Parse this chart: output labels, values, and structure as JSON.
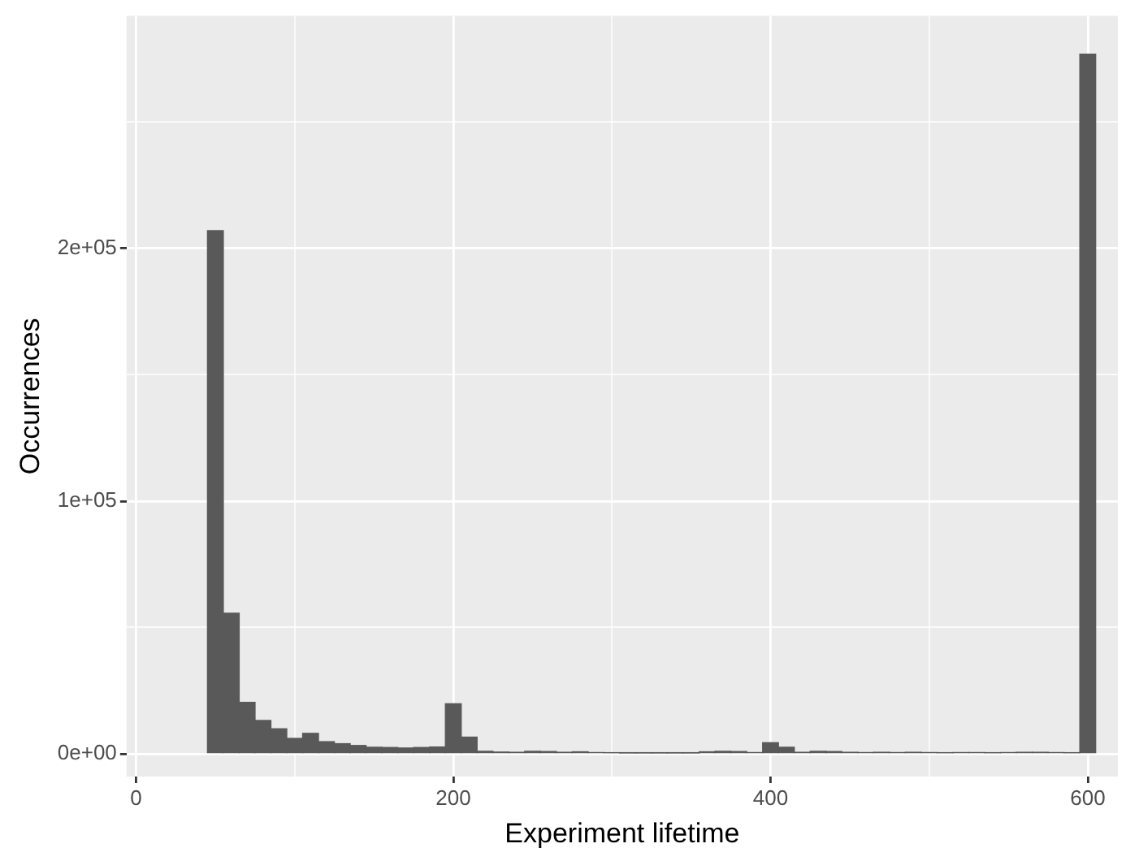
{
  "chart_data": {
    "type": "histogram",
    "xlabel": "Experiment lifetime",
    "ylabel": "Occurrences",
    "color": "#595959",
    "bins": [
      45,
      55,
      65,
      75,
      85,
      95,
      105,
      115,
      125,
      135,
      145,
      155,
      165,
      175,
      185,
      195,
      205,
      215,
      225,
      235,
      245,
      255,
      265,
      275,
      285,
      295,
      305,
      315,
      325,
      335,
      345,
      355,
      365,
      375,
      385,
      395,
      405,
      415,
      425,
      435,
      445,
      455,
      465,
      475,
      485,
      495,
      505,
      515,
      525,
      535,
      545,
      555,
      565,
      575,
      585,
      595,
      605
    ],
    "values": [
      207000,
      55600,
      20400,
      13200,
      9900,
      6100,
      8100,
      4800,
      4000,
      3300,
      2600,
      2500,
      2300,
      2500,
      2700,
      19800,
      6600,
      1000,
      700,
      600,
      1000,
      900,
      600,
      800,
      500,
      400,
      300,
      300,
      300,
      300,
      300,
      800,
      1000,
      900,
      500,
      4400,
      2600,
      600,
      1000,
      900,
      600,
      500,
      600,
      500,
      600,
      500,
      400,
      500,
      500,
      400,
      500,
      600,
      600,
      500,
      400,
      276900
    ],
    "xlim": [
      -6,
      619
    ],
    "xticks": [
      0,
      {
        "value": 100,
        "label": null
      },
      200,
      {
        "value": 300,
        "label": null
      },
      400,
      {
        "value": 500,
        "label": null
      },
      600
    ],
    "ylim": [
      -9000,
      292000
    ],
    "yticks": [
      {
        "value": 0,
        "label": "0e+00"
      },
      {
        "value": 50000,
        "label": null
      },
      {
        "value": 100000,
        "label": "1e+05"
      },
      {
        "value": 150000,
        "label": null
      },
      {
        "value": 200000,
        "label": "2e+05"
      },
      {
        "value": 250000,
        "label": null
      }
    ],
    "grid": true,
    "legend": false
  }
}
